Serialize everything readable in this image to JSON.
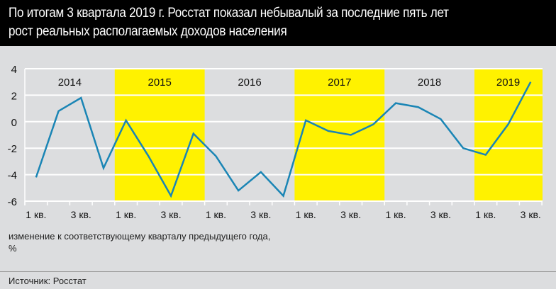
{
  "title_lines": [
    "По итогам 3 квартала 2019 г. Росстат показал небывалый за последние пять лет",
    "рост реальных располагаемых доходов населения"
  ],
  "chart_data": {
    "type": "line",
    "years": [
      "2014",
      "2015",
      "2016",
      "2017",
      "2018",
      "2019"
    ],
    "highlighted_years": [
      "2015",
      "2017",
      "2019"
    ],
    "categories": [
      "2014 1 кв.",
      "2014 2 кв.",
      "2014 3 кв.",
      "2014 4 кв.",
      "2015 1 кв.",
      "2015 2 кв.",
      "2015 3 кв.",
      "2015 4 кв.",
      "2016 1 кв.",
      "2016 2 кв.",
      "2016 3 кв.",
      "2016 4 кв.",
      "2017 1 кв.",
      "2017 2 кв.",
      "2017 3 кв.",
      "2017 4 кв.",
      "2018 1 кв.",
      "2018 2 кв.",
      "2018 3 кв.",
      "2018 4 кв.",
      "2019 1 кв.",
      "2019 2 кв.",
      "2019 3 кв."
    ],
    "values": [
      -4.2,
      0.8,
      1.8,
      -3.5,
      0.1,
      -2.6,
      -5.6,
      -0.9,
      -2.6,
      -5.2,
      -3.8,
      -5.6,
      0.1,
      -0.7,
      -1.0,
      -0.2,
      1.4,
      1.1,
      0.2,
      -2.0,
      -2.5,
      -0.2,
      3.0
    ],
    "x_tick_labels": [
      "1 кв.",
      "3 кв."
    ],
    "yticks": [
      4,
      2,
      0,
      -2,
      -4,
      -6
    ],
    "ylim": [
      -6,
      4
    ],
    "ylabel": "изменение к соответствующему кварталу предыдущего года, %",
    "ylabel_lines": [
      "изменение к соответствующему кварталу предыдущего года,",
      "%"
    ],
    "grid": true,
    "colors": {
      "line": "#1a85b5",
      "highlight": "#fff200",
      "grid": "#ffffff",
      "background": "#dcdddf"
    }
  },
  "source": "Источник: Росстат"
}
